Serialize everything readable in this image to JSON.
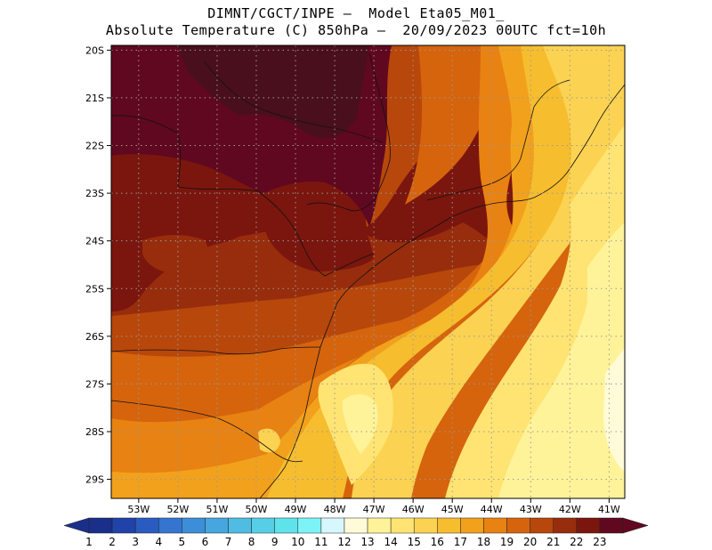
{
  "title": {
    "line1": "DIMNT/CGCT/INPE —  Model Eta05_M01_",
    "line2": "Absolute Temperature (C) 850hPa —  20/09/2023 00UTC fct=10h"
  },
  "axes": {
    "lat_labels": [
      "20S",
      "21S",
      "22S",
      "23S",
      "24S",
      "25S",
      "26S",
      "27S",
      "28S",
      "29S"
    ],
    "lon_labels": [
      "53W",
      "52W",
      "51W",
      "50W",
      "49W",
      "48W",
      "47W",
      "46W",
      "45W",
      "44W",
      "43W",
      "42W",
      "41W"
    ],
    "lat_range": [
      -29.4,
      -19.9
    ],
    "lon_range": [
      -53.7,
      -40.6
    ]
  },
  "colorbar": {
    "labels": [
      "1",
      "2",
      "3",
      "4",
      "5",
      "6",
      "7",
      "8",
      "9",
      "10",
      "11",
      "12",
      "13",
      "14",
      "15",
      "16",
      "17",
      "18",
      "19",
      "20",
      "21",
      "22",
      "23"
    ],
    "colors": [
      "#1a2f8a",
      "#2142a8",
      "#2a5bc0",
      "#3475cf",
      "#3d8ed8",
      "#46a6df",
      "#4fbde3",
      "#56cfe6",
      "#5fe3ea",
      "#7cf4f7",
      "#d6f7fb",
      "#fffbd8",
      "#fff39a",
      "#ffe473",
      "#fbd252",
      "#f6bd2f",
      "#f2a11c",
      "#e88212",
      "#d5640d",
      "#b8470b",
      "#972d0c",
      "#7a160e",
      "#60081f"
    ]
  },
  "legend": {
    "colors": {
      "t14": "#ffe473",
      "t15": "#fbd252",
      "t16": "#f6bd2f",
      "t17": "#f2a11c",
      "t18": "#e88212",
      "t19": "#d5640d",
      "t20": "#b8470b",
      "t21": "#972d0c",
      "t22": "#7a160e",
      "t23": "#60081f",
      "tmax": "#4a0f1c",
      "t13": "#fff39a",
      "t12": "#fffbd8"
    }
  }
}
